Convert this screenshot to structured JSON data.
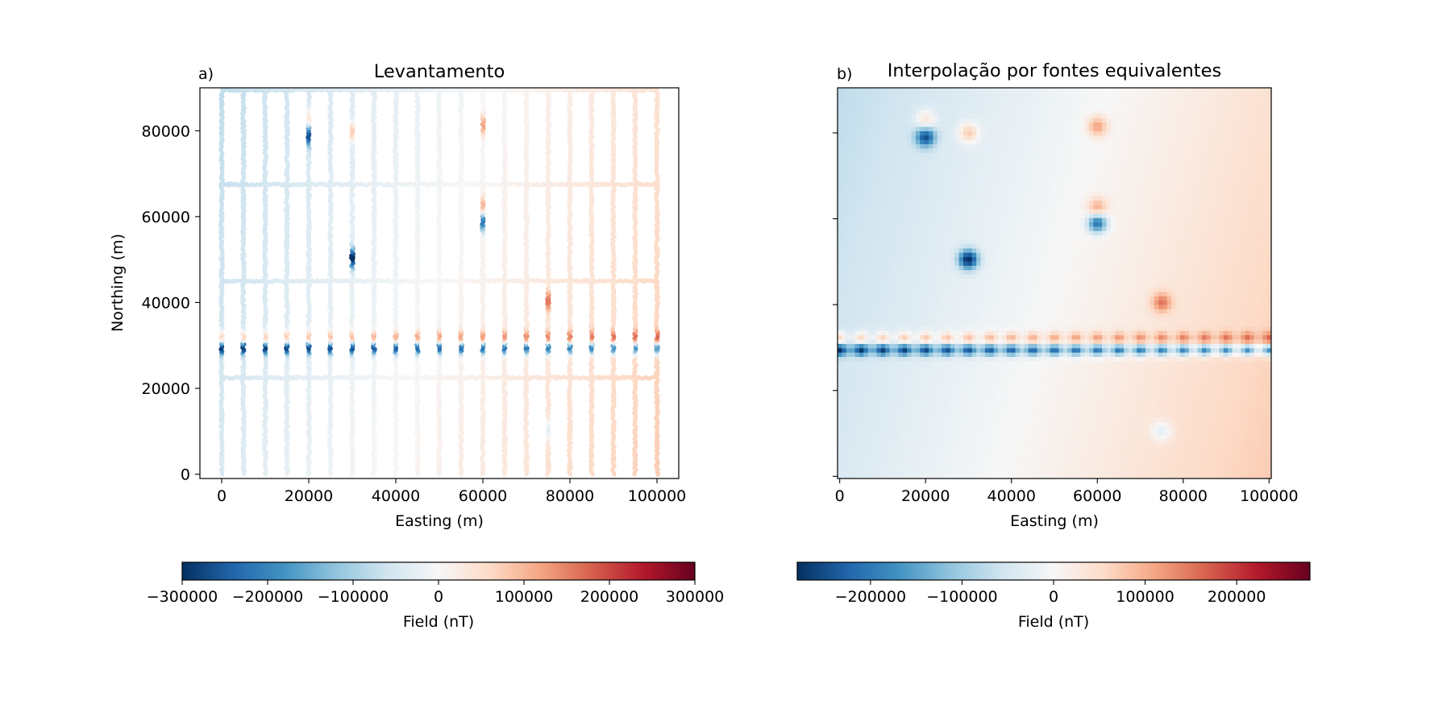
{
  "chart_data": [
    {
      "type": "scatter",
      "panel_tag": "a)",
      "title": "Levantamento",
      "xlabel": "Easting (m)",
      "ylabel": "Northing (m)",
      "xlim": [
        -5000,
        105000
      ],
      "ylim": [
        -1000,
        90000
      ],
      "xticks": [
        0,
        20000,
        40000,
        60000,
        80000,
        100000
      ],
      "xtick_labels": [
        "0",
        "20000",
        "40000",
        "60000",
        "80000",
        "100000"
      ],
      "yticks": [
        0,
        20000,
        40000,
        60000,
        80000
      ],
      "ytick_labels": [
        "0",
        "20000",
        "40000",
        "60000",
        "80000"
      ],
      "colormap": "RdBu_r",
      "vmin": -300000,
      "vmax": 300000,
      "survey_lines_x": [
        0,
        5000,
        10000,
        15000,
        20000,
        25000,
        30000,
        35000,
        40000,
        45000,
        50000,
        55000,
        60000,
        65000,
        70000,
        75000,
        80000,
        85000,
        90000,
        95000,
        100000
      ],
      "tie_lines_y": [
        22500,
        45000,
        67500,
        89500
      ],
      "regional_field_range": [
        -60000,
        60000
      ],
      "anomalies": [
        {
          "x": 20000,
          "y": 79000,
          "value": -220000
        },
        {
          "x": 20000,
          "y": 83000,
          "value": 90000
        },
        {
          "x": 30000,
          "y": 50500,
          "value": -280000
        },
        {
          "x": 30000,
          "y": 80000,
          "value": 110000
        },
        {
          "x": 60000,
          "y": 59000,
          "value": -230000
        },
        {
          "x": 60000,
          "y": 62500,
          "value": 110000
        },
        {
          "x": 60000,
          "y": 81500,
          "value": 120000
        },
        {
          "x": 75000,
          "y": 40500,
          "value": 130000
        },
        {
          "x": 75000,
          "y": 10500,
          "value": -70000
        }
      ],
      "dipole_row": {
        "y_negative": 29500,
        "y_positive": 32000,
        "value_negative": -250000,
        "value_positive": 120000
      },
      "colorbar": {
        "label": "Field (nT)",
        "ticks": [
          -300000,
          -200000,
          -100000,
          0,
          100000,
          200000,
          300000
        ],
        "tick_labels": [
          "−300000",
          "−200000",
          "−100000",
          "0",
          "100000",
          "200000",
          "300000"
        ]
      }
    },
    {
      "type": "heatmap",
      "panel_tag": "b)",
      "title": "Interpolação por fontes equivalentes",
      "xlabel": "Easting (m)",
      "ylabel": "",
      "xlim": [
        -500,
        100500
      ],
      "ylim": [
        -500,
        90500
      ],
      "xticks": [
        0,
        20000,
        40000,
        60000,
        80000,
        100000
      ],
      "xtick_labels": [
        "0",
        "20000",
        "40000",
        "60000",
        "80000",
        "100000"
      ],
      "yticks": [
        0,
        20000,
        40000,
        60000,
        80000
      ],
      "colormap": "RdBu_r",
      "vmin": -280000,
      "vmax": 280000,
      "anomalies": [
        {
          "x": 20000,
          "y": 79000,
          "value": -220000
        },
        {
          "x": 20000,
          "y": 84000,
          "value": 80000
        },
        {
          "x": 30000,
          "y": 50500,
          "value": -260000
        },
        {
          "x": 60000,
          "y": 59500,
          "value": -200000
        },
        {
          "x": 60000,
          "y": 62500,
          "value": 100000
        },
        {
          "x": 60000,
          "y": 82000,
          "value": 90000
        },
        {
          "x": 75000,
          "y": 40500,
          "value": 80000
        },
        {
          "x": 75000,
          "y": 10500,
          "value": -60000
        }
      ],
      "dipole_row": {
        "y_negative": 29500,
        "y_positive": 32000,
        "value_negative": -250000,
        "value_positive": 110000
      },
      "colorbar": {
        "label": "Field (nT)",
        "ticks": [
          -200000,
          -100000,
          0,
          100000,
          200000
        ],
        "tick_labels": [
          "−200000",
          "−100000",
          "0",
          "100000",
          "200000"
        ]
      }
    }
  ]
}
